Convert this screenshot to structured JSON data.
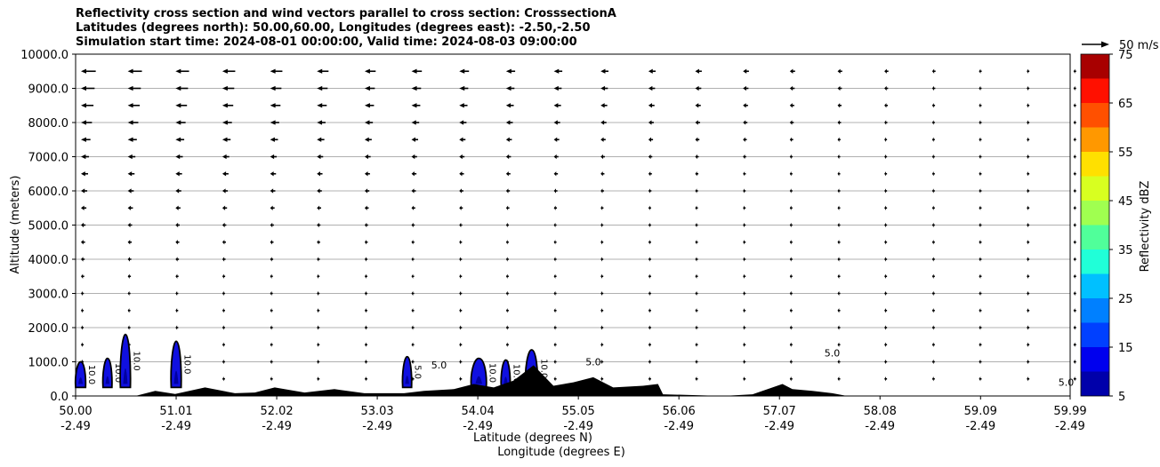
{
  "chart_data": {
    "type": "cross-section",
    "title_lines": [
      "Reflectivity cross section and wind vectors parallel to cross section: CrosssectionA",
      "Latitudes (degrees north): 50.00,60.00, Longitudes (degrees east): -2.50,-2.50",
      "Simulation start time: 2024-08-01 00:00:00, Valid time: 2024-08-03 09:00:00"
    ],
    "ylabel": "Altitude (meters)",
    "xlabel_lat": "Latitude (degrees N)",
    "xlabel_lon": "Longitude (degrees E)",
    "ylim": [
      0,
      10000
    ],
    "xlim": [
      50.0,
      59.99
    ],
    "y_ticks": [
      {
        "value": 0,
        "label": "0.0"
      },
      {
        "value": 1000,
        "label": "1000.0"
      },
      {
        "value": 2000,
        "label": "2000.0"
      },
      {
        "value": 3000,
        "label": "3000.0"
      },
      {
        "value": 4000,
        "label": "4000.0"
      },
      {
        "value": 5000,
        "label": "5000.0"
      },
      {
        "value": 6000,
        "label": "6000.0"
      },
      {
        "value": 7000,
        "label": "7000.0"
      },
      {
        "value": 8000,
        "label": "8000.0"
      },
      {
        "value": 9000,
        "label": "9000.0"
      },
      {
        "value": 10000,
        "label": "10000.0"
      }
    ],
    "x_ticks": [
      {
        "lat": 50.0,
        "lat_label": "50.00",
        "lon_label": "-2.49"
      },
      {
        "lat": 51.01,
        "lat_label": "51.01",
        "lon_label": "-2.49"
      },
      {
        "lat": 52.02,
        "lat_label": "52.02",
        "lon_label": "-2.49"
      },
      {
        "lat": 53.03,
        "lat_label": "53.03",
        "lon_label": "-2.49"
      },
      {
        "lat": 54.04,
        "lat_label": "54.04",
        "lon_label": "-2.49"
      },
      {
        "lat": 55.05,
        "lat_label": "55.05",
        "lon_label": "-2.49"
      },
      {
        "lat": 56.06,
        "lat_label": "56.06",
        "lon_label": "-2.49"
      },
      {
        "lat": 57.07,
        "lat_label": "57.07",
        "lon_label": "-2.49"
      },
      {
        "lat": 58.08,
        "lat_label": "58.08",
        "lon_label": "-2.49"
      },
      {
        "lat": 59.09,
        "lat_label": "59.09",
        "lon_label": "-2.49"
      },
      {
        "lat": 59.99,
        "lat_label": "59.99",
        "lon_label": "-2.49"
      }
    ],
    "gridlines": "horizontal",
    "wind_reference": {
      "label": "50 m/s",
      "speed": 50
    },
    "wind_levels": [
      500,
      1000,
      1500,
      2000,
      2500,
      3000,
      3500,
      4000,
      4500,
      5000,
      5500,
      6000,
      6500,
      7000,
      7500,
      8000,
      8500,
      9000,
      9500
    ],
    "wind_lats": [
      50.0,
      50.47,
      50.95,
      51.42,
      51.9,
      52.37,
      52.85,
      53.32,
      53.8,
      54.27,
      54.75,
      55.22,
      55.7,
      56.17,
      56.65,
      57.12,
      57.6,
      58.07,
      58.55,
      59.02,
      59.5,
      59.97
    ],
    "wind_speed_profile": [
      {
        "alt": 500,
        "speed": 3
      },
      {
        "alt": 3000,
        "speed": 5
      },
      {
        "alt": 5000,
        "speed": 8
      },
      {
        "alt": 7000,
        "speed": 14
      },
      {
        "alt": 8500,
        "speed": 22
      },
      {
        "alt": 9500,
        "speed": 26
      }
    ],
    "terrain": [
      [
        50.0,
        0
      ],
      [
        50.6,
        0
      ],
      [
        50.8,
        150
      ],
      [
        51.0,
        60
      ],
      [
        51.3,
        250
      ],
      [
        51.6,
        80
      ],
      [
        51.8,
        100
      ],
      [
        52.0,
        250
      ],
      [
        52.3,
        100
      ],
      [
        52.6,
        200
      ],
      [
        52.9,
        80
      ],
      [
        53.3,
        80
      ],
      [
        53.5,
        150
      ],
      [
        53.8,
        200
      ],
      [
        54.0,
        350
      ],
      [
        54.2,
        250
      ],
      [
        54.4,
        450
      ],
      [
        54.6,
        900
      ],
      [
        54.8,
        300
      ],
      [
        55.0,
        400
      ],
      [
        55.2,
        550
      ],
      [
        55.4,
        250
      ],
      [
        55.7,
        300
      ],
      [
        55.85,
        350
      ],
      [
        55.9,
        50
      ],
      [
        56.5,
        0
      ],
      [
        56.8,
        50
      ],
      [
        57.0,
        250
      ],
      [
        57.1,
        350
      ],
      [
        57.2,
        200
      ],
      [
        57.4,
        150
      ],
      [
        57.6,
        80
      ],
      [
        57.75,
        0
      ],
      [
        59.99,
        0
      ]
    ],
    "reflectivity_cells": [
      {
        "lat": 50.05,
        "alt_top": 1000,
        "width": 0.1,
        "label": "10.0"
      },
      {
        "lat": 50.32,
        "alt_top": 1100,
        "width": 0.08,
        "label": "10.0"
      },
      {
        "lat": 50.5,
        "alt_top": 1800,
        "width": 0.1,
        "label": "10.0"
      },
      {
        "lat": 51.01,
        "alt_top": 1600,
        "width": 0.1,
        "label": "10.0"
      },
      {
        "lat": 53.33,
        "alt_top": 1150,
        "width": 0.05,
        "label": "5.0"
      },
      {
        "lat": 54.05,
        "alt_top": 1100,
        "width": 0.15,
        "label": "10.0"
      },
      {
        "lat": 54.32,
        "alt_top": 1050,
        "width": 0.07,
        "label": "10.0"
      },
      {
        "lat": 54.58,
        "alt_top": 1350,
        "width": 0.12,
        "label": "10.0"
      }
    ],
    "contour_labels": [
      {
        "lat": 53.65,
        "alt": 800,
        "label": "5.0"
      },
      {
        "lat": 55.2,
        "alt": 900,
        "label": "5.0"
      },
      {
        "lat": 57.6,
        "alt": 1150,
        "label": "5.0"
      },
      {
        "lat": 59.95,
        "alt": 300,
        "label": "5.0"
      }
    ],
    "colorbar": {
      "label": "Reflectivity dBZ",
      "levels": [
        5,
        10,
        15,
        20,
        25,
        30,
        35,
        40,
        45,
        50,
        55,
        60,
        65,
        70,
        75
      ],
      "tick_labels": [
        "5",
        "15",
        "25",
        "35",
        "45",
        "55",
        "65",
        "75"
      ],
      "colors": [
        "#0000aa",
        "#0000ee",
        "#0040ff",
        "#0080ff",
        "#00c0ff",
        "#20ffd8",
        "#50ff9a",
        "#a0ff50",
        "#d8ff20",
        "#ffe000",
        "#ff9800",
        "#ff5000",
        "#ff1000",
        "#a80000"
      ]
    }
  }
}
